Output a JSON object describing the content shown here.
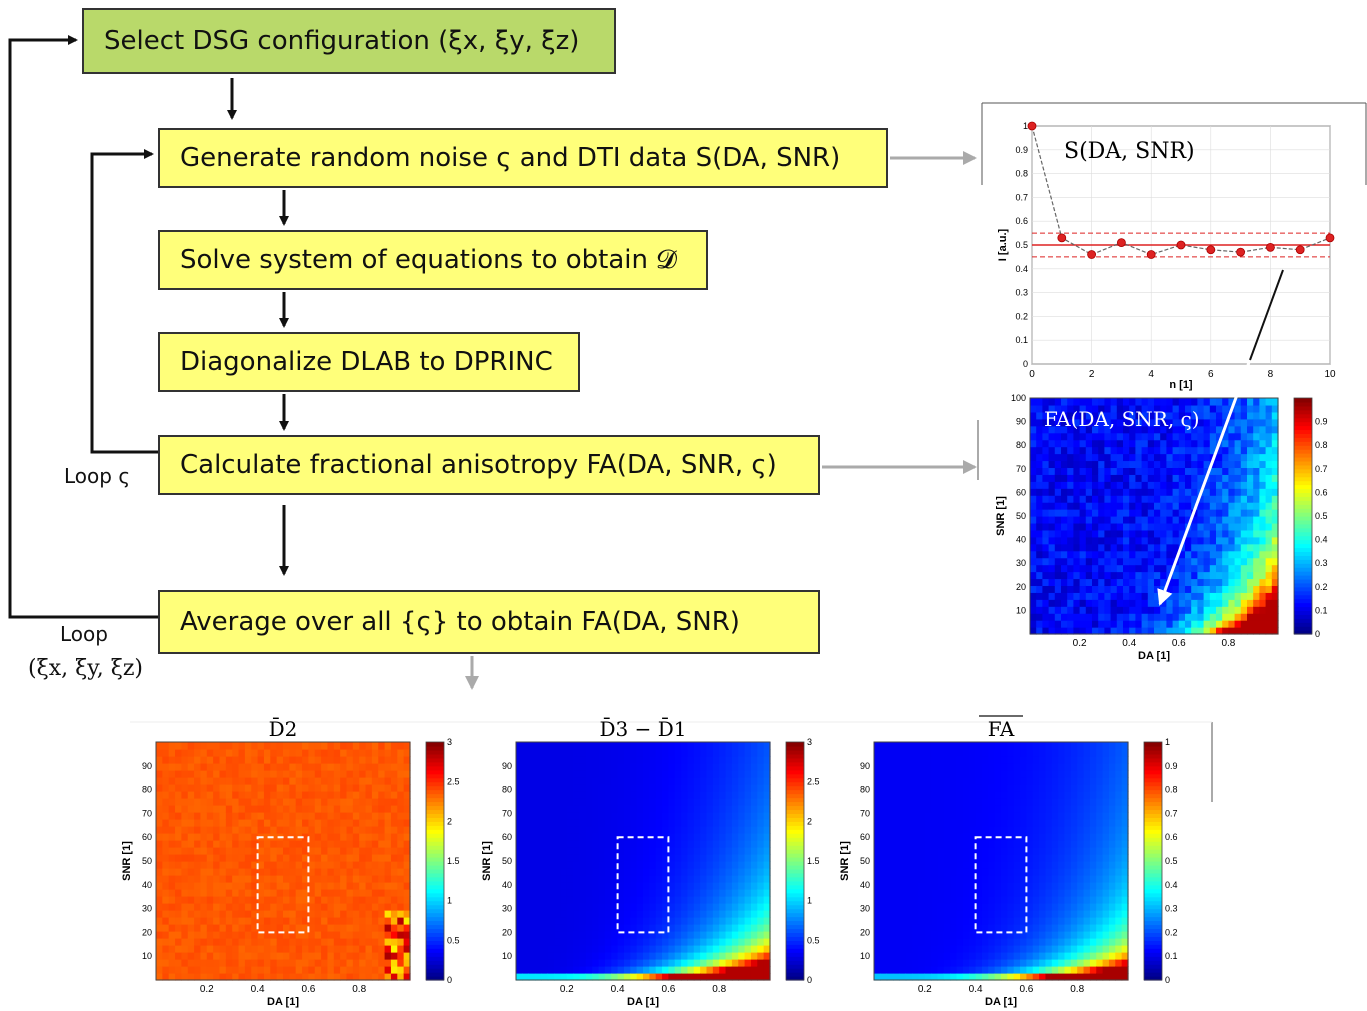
{
  "flow": {
    "select_label": "Select DSG configuration (ξx, ξy, ξz)",
    "generate_label": "Generate random noise ς and DTI data S(DA, SNR)",
    "solve_label": "Solve system of equations to obtain 𝓓",
    "diag_label": "Diagonalize DLAB to DPRINC",
    "calc_label": "Calculate fractional anisotropy FA(DA, SNR, ς)",
    "avg_label": "Average over all {ς} to obtain FA(DA, SNR)",
    "loop_inner": "Loop ς",
    "loop_outer_1": "Loop",
    "loop_outer_2": "(ξx, ξy, ξz)"
  },
  "colors": {
    "box_yellow": "#ffff7a",
    "box_green": "#b9d96a",
    "arrow_gray": "#aaaaaa",
    "marker_red": "#dd2222"
  },
  "chart_data": [
    {
      "type": "line",
      "title": "S(DA, SNR)",
      "xlabel": "n [1]",
      "ylabel": "I [a.u.]",
      "xlim": [
        0,
        10
      ],
      "ylim": [
        0,
        1
      ],
      "xticks": [
        "0",
        "2",
        "4",
        "6",
        "8",
        "10"
      ],
      "yticks": [
        "0",
        "0.1",
        "0.2",
        "0.3",
        "0.4",
        "0.5",
        "0.6",
        "0.7",
        "0.8",
        "0.9",
        "1"
      ],
      "x": [
        0,
        1,
        2,
        3,
        4,
        5,
        6,
        7,
        8,
        9,
        10
      ],
      "y": [
        1.0,
        0.53,
        0.46,
        0.51,
        0.46,
        0.5,
        0.48,
        0.47,
        0.49,
        0.48,
        0.53
      ],
      "reference_lines": [
        0.5,
        0.45,
        0.55
      ]
    },
    {
      "type": "heatmap",
      "title": "FA(DA, SNR, ς)",
      "xlabel": "DA [1]",
      "ylabel": "SNR [1]",
      "xticks": [
        "0.2",
        "0.4",
        "0.6",
        "0.8"
      ],
      "yticks": [
        "10",
        "20",
        "30",
        "40",
        "50",
        "60",
        "70",
        "80",
        "90",
        "100"
      ],
      "colorbar_ticks": [
        "0",
        "0.1",
        "0.2",
        "0.3",
        "0.4",
        "0.5",
        "0.6",
        "0.7",
        "0.8",
        "0.9"
      ]
    },
    {
      "type": "heatmap",
      "title": "D̄2",
      "xlabel": "DA [1]",
      "ylabel": "SNR [1]",
      "xticks": [
        "0.2",
        "0.4",
        "0.6",
        "0.8"
      ],
      "yticks": [
        "10",
        "20",
        "30",
        "40",
        "50",
        "60",
        "70",
        "80",
        "90"
      ],
      "colorbar_ticks": [
        "0",
        "0.5",
        "1",
        "1.5",
        "2",
        "2.5",
        "3"
      ]
    },
    {
      "type": "heatmap",
      "title": "D̄3 − D̄1",
      "xlabel": "DA [1]",
      "ylabel": "SNR [1]",
      "xticks": [
        "0.2",
        "0.4",
        "0.6",
        "0.8"
      ],
      "yticks": [
        "10",
        "20",
        "30",
        "40",
        "50",
        "60",
        "70",
        "80",
        "90"
      ],
      "colorbar_ticks": [
        "0",
        "0.5",
        "1",
        "1.5",
        "2",
        "2.5",
        "3"
      ]
    },
    {
      "type": "heatmap",
      "title": "FA",
      "xlabel": "DA [1]",
      "ylabel": "SNR [1]",
      "xticks": [
        "0.2",
        "0.4",
        "0.6",
        "0.8"
      ],
      "yticks": [
        "10",
        "20",
        "30",
        "40",
        "50",
        "60",
        "70",
        "80",
        "90"
      ],
      "colorbar_ticks": [
        "0",
        "0.1",
        "0.2",
        "0.3",
        "0.4",
        "0.5",
        "0.6",
        "0.7",
        "0.8",
        "0.9",
        "1"
      ]
    }
  ]
}
